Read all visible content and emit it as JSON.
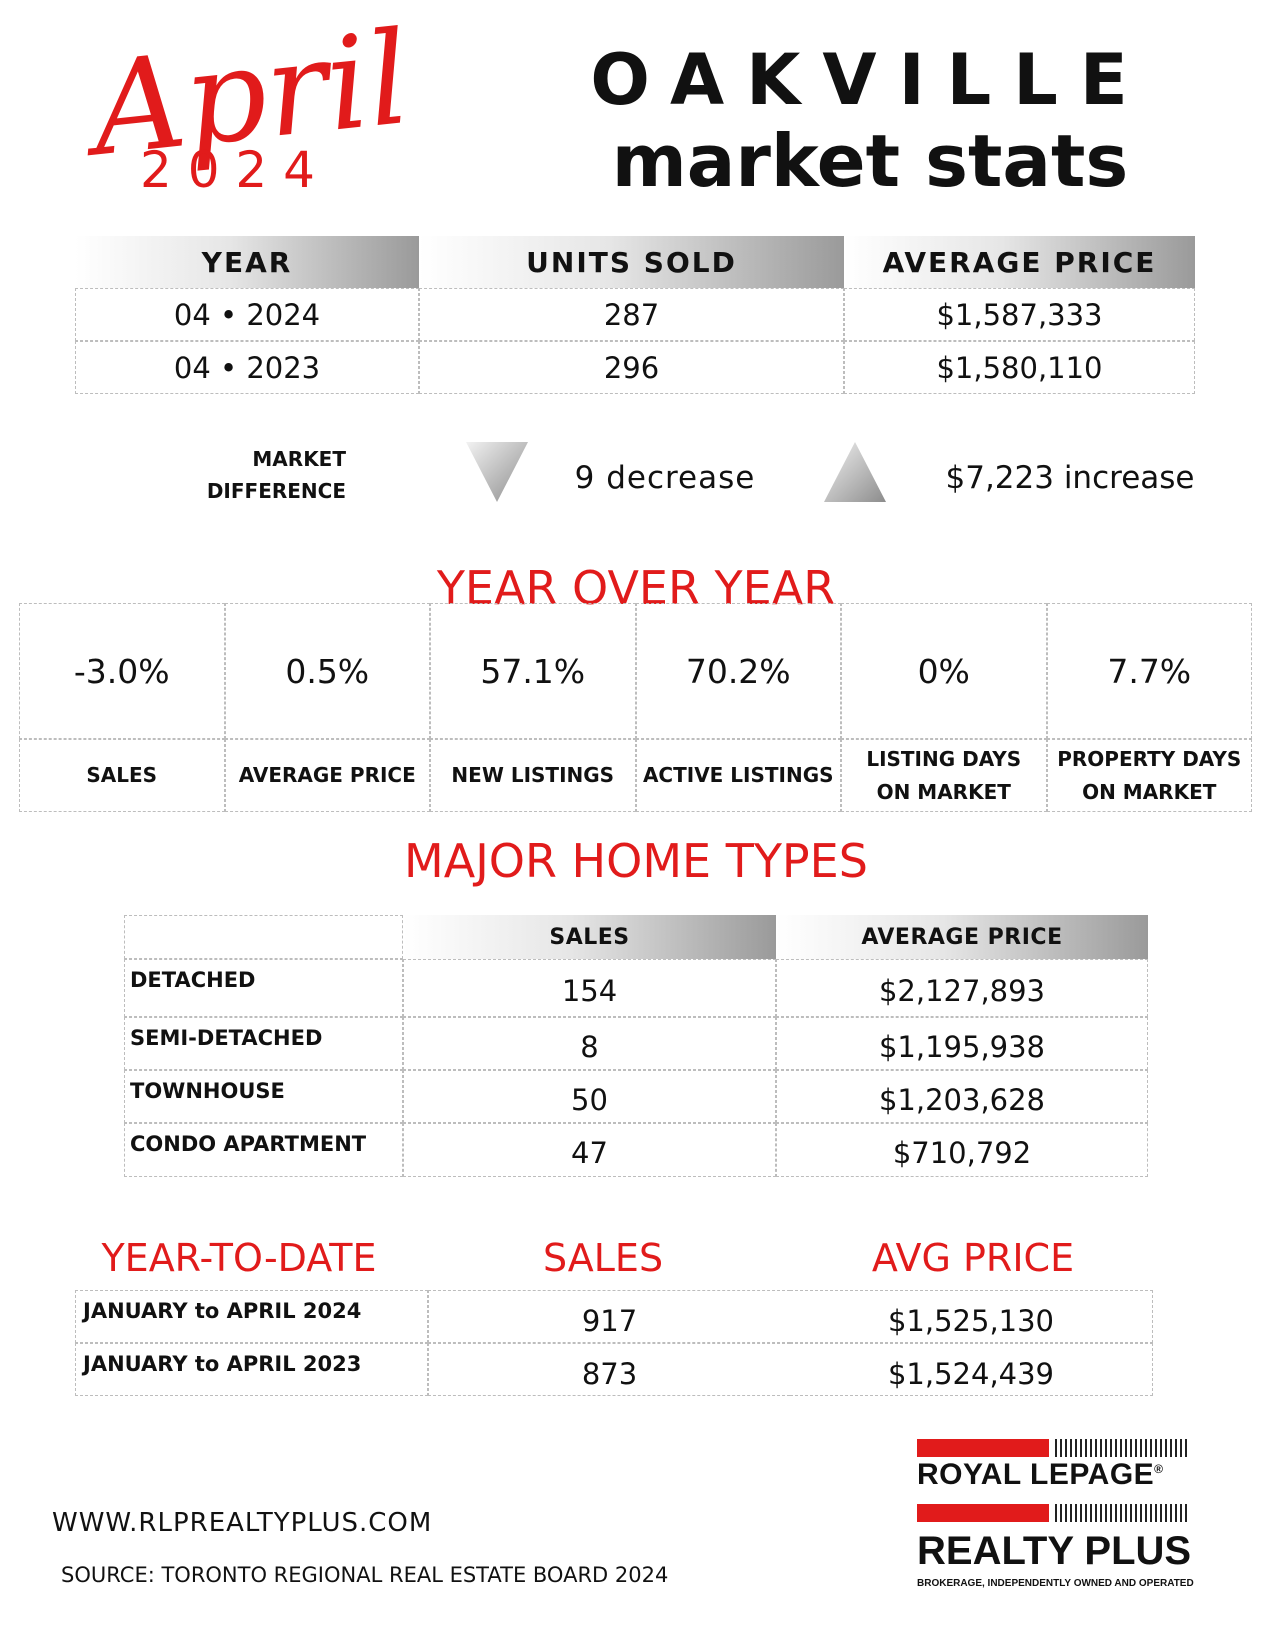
{
  "header": {
    "month": "April",
    "year": "2 0 2 4",
    "city": "OAKVILLE",
    "subtitle": "market stats"
  },
  "summary_table": {
    "columns": [
      "YEAR",
      "UNITS SOLD",
      "AVERAGE PRICE"
    ],
    "rows": [
      [
        "04 • 2024",
        "287",
        "$1,587,333"
      ],
      [
        "04 • 2023",
        "296",
        "$1,580,110"
      ]
    ]
  },
  "market_difference": {
    "label_lines": [
      "MARKET",
      "DIFFERENCE"
    ],
    "units": "9 decrease",
    "price": "$7,223 increase"
  },
  "year_over_year": {
    "title": "YEAR OVER YEAR",
    "items": [
      {
        "value": "-3.0%",
        "label_lines": [
          "SALES"
        ]
      },
      {
        "value": "0.5%",
        "label_lines": [
          "AVERAGE PRICE"
        ]
      },
      {
        "value": "57.1%",
        "label_lines": [
          "NEW LISTINGS"
        ]
      },
      {
        "value": "70.2%",
        "label_lines": [
          "ACTIVE LISTINGS"
        ]
      },
      {
        "value": "0%",
        "label_lines": [
          "LISTING DAYS",
          "ON MARKET"
        ]
      },
      {
        "value": "7.7%",
        "label_lines": [
          "PROPERTY DAYS",
          "ON MARKET"
        ]
      }
    ]
  },
  "home_types": {
    "title": "MAJOR HOME TYPES",
    "columns": [
      "SALES",
      "AVERAGE PRICE"
    ],
    "rows": [
      [
        "DETACHED",
        "154",
        "$2,127,893"
      ],
      [
        "SEMI-DETACHED",
        "8",
        "$1,195,938"
      ],
      [
        "TOWNHOUSE",
        "50",
        "$1,203,628"
      ],
      [
        "CONDO APARTMENT",
        "47",
        "$710,792"
      ]
    ]
  },
  "year_to_date": {
    "columns": [
      "YEAR-TO-DATE",
      "SALES",
      "AVG PRICE"
    ],
    "rows": [
      [
        "JANUARY to APRIL 2024",
        "917",
        "$1,525,130"
      ],
      [
        "JANUARY to APRIL 2023",
        "873",
        "$1,524,439"
      ]
    ]
  },
  "footer": {
    "website": "WWW.RLPREALTYPLUS.COM",
    "source": "SOURCE: TORONTO REGIONAL REAL ESTATE BOARD 2024"
  },
  "logo": {
    "line1": "ROYAL LEPAGE",
    "registered": "®",
    "line2": "REALTY PLUS",
    "tagline": "BROKERAGE, INDEPENDENTLY OWNED AND OPERATED"
  }
}
